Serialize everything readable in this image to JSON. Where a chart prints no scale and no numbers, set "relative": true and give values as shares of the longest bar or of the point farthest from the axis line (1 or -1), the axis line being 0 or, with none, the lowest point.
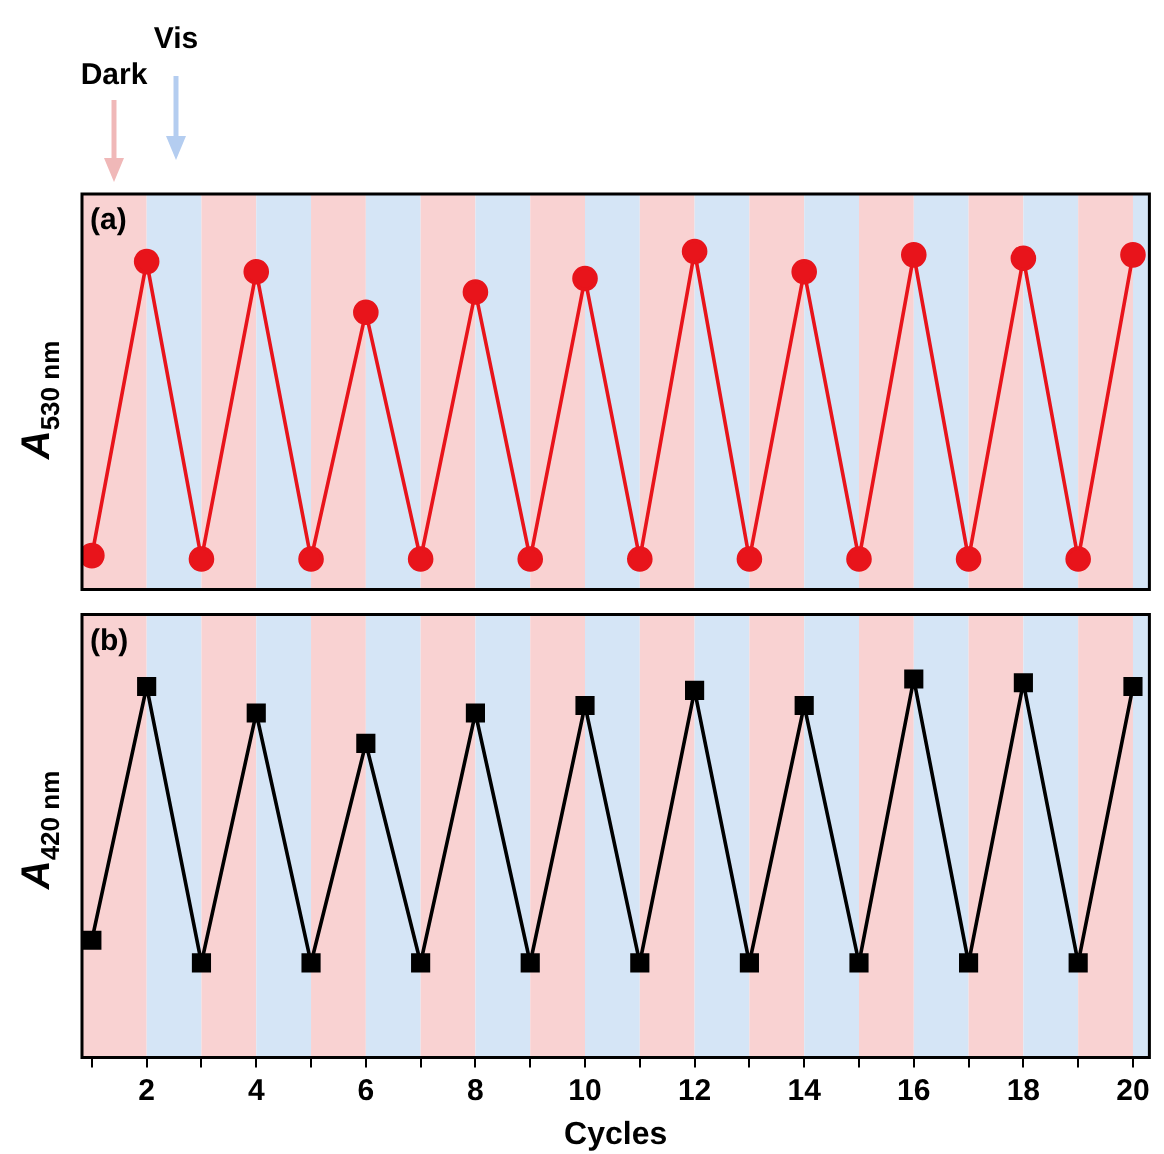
{
  "chart_data": [
    {
      "type": "line",
      "relative": true,
      "ylabel": "A$_{530 nm}$",
      "annotations": [
        "(a)",
        "Dark",
        "Vis"
      ],
      "marker": "circle",
      "grid": false,
      "tick_labels": false,
      "x": [
        1,
        2,
        3,
        4,
        5,
        6,
        7,
        8,
        9,
        10,
        11,
        12,
        13,
        14,
        15,
        16,
        17,
        18,
        19,
        20
      ],
      "xlim": [
        0.82,
        20.3
      ],
      "series": [
        {
          "color": "#e8141b",
          "values": [
            0.1,
            0.97,
            0.09,
            0.94,
            0.09,
            0.82,
            0.09,
            0.88,
            0.09,
            0.92,
            0.09,
            1,
            0.09,
            0.94,
            0.09,
            0.99,
            0.09,
            0.98,
            0.09,
            0.99
          ]
        }
      ],
      "bands": [
        {
          "axis": "x",
          "from": 0.82,
          "to": 2,
          "label": null,
          "color": "#f9d2d2"
        },
        {
          "axis": "x",
          "from": 2,
          "to": 3,
          "label": null,
          "color": "#d5e5f6"
        },
        {
          "axis": "x",
          "from": 3,
          "to": 4,
          "label": null,
          "color": "#f9d2d2"
        },
        {
          "axis": "x",
          "from": 4,
          "to": 5,
          "label": null,
          "color": "#d5e5f6"
        },
        {
          "axis": "x",
          "from": 5,
          "to": 6,
          "label": null,
          "color": "#f9d2d2"
        },
        {
          "axis": "x",
          "from": 6,
          "to": 7,
          "label": null,
          "color": "#d5e5f6"
        },
        {
          "axis": "x",
          "from": 7,
          "to": 8,
          "label": null,
          "color": "#f9d2d2"
        },
        {
          "axis": "x",
          "from": 8,
          "to": 9,
          "label": null,
          "color": "#d5e5f6"
        },
        {
          "axis": "x",
          "from": 9,
          "to": 10,
          "label": null,
          "color": "#f9d2d2"
        },
        {
          "axis": "x",
          "from": 10,
          "to": 11,
          "label": null,
          "color": "#d5e5f6"
        },
        {
          "axis": "x",
          "from": 11,
          "to": 12,
          "label": null,
          "color": "#f9d2d2"
        },
        {
          "axis": "x",
          "from": 12,
          "to": 13,
          "label": null,
          "color": "#d5e5f6"
        },
        {
          "axis": "x",
          "from": 13,
          "to": 14,
          "label": null,
          "color": "#f9d2d2"
        },
        {
          "axis": "x",
          "from": 14,
          "to": 15,
          "label": null,
          "color": "#d5e5f6"
        },
        {
          "axis": "x",
          "from": 15,
          "to": 16,
          "label": null,
          "color": "#f9d2d2"
        },
        {
          "axis": "x",
          "from": 16,
          "to": 17,
          "label": null,
          "color": "#d5e5f6"
        },
        {
          "axis": "x",
          "from": 17,
          "to": 18,
          "label": null,
          "color": "#f9d2d2"
        },
        {
          "axis": "x",
          "from": 18,
          "to": 19,
          "label": null,
          "color": "#d5e5f6"
        },
        {
          "axis": "x",
          "from": 19,
          "to": 20,
          "label": null,
          "color": "#f9d2d2"
        },
        {
          "axis": "x",
          "from": 20,
          "to": 20.3,
          "label": null,
          "color": "#d5e5f6"
        }
      ]
    },
    {
      "type": "line",
      "relative": true,
      "ylabel": "A$_{420 nm}$",
      "xlabel": "Cycles",
      "annotations": [
        "(b)"
      ],
      "marker": "square",
      "grid": false,
      "tick_labels": "x",
      "x": [
        1,
        2,
        3,
        4,
        5,
        6,
        7,
        8,
        9,
        10,
        11,
        12,
        13,
        14,
        15,
        16,
        17,
        18,
        19,
        20
      ],
      "xlim": [
        0.82,
        20.3
      ],
      "xticks": [
        {
          "value": 1,
          "label": null
        },
        2,
        {
          "value": 3,
          "label": null
        },
        4,
        {
          "value": 5,
          "label": null
        },
        6,
        {
          "value": 7,
          "label": null
        },
        8,
        {
          "value": 9,
          "label": null
        },
        10,
        {
          "value": 11,
          "label": null
        },
        12,
        {
          "value": 13,
          "label": null
        },
        14,
        {
          "value": 15,
          "label": null
        },
        16,
        {
          "value": 17,
          "label": null
        },
        18,
        {
          "value": 19,
          "label": null
        },
        20
      ],
      "series": [
        {
          "color": "#000000",
          "values": [
            0.31,
            0.98,
            0.25,
            0.91,
            0.25,
            0.83,
            0.25,
            0.91,
            0.25,
            0.93,
            0.25,
            0.97,
            0.25,
            0.93,
            0.25,
            1,
            0.25,
            0.99,
            0.25,
            0.98
          ]
        }
      ],
      "bands": [
        {
          "axis": "x",
          "from": 0.82,
          "to": 2,
          "label": null,
          "color": "#f9d2d2"
        },
        {
          "axis": "x",
          "from": 2,
          "to": 3,
          "label": null,
          "color": "#d5e5f6"
        },
        {
          "axis": "x",
          "from": 3,
          "to": 4,
          "label": null,
          "color": "#f9d2d2"
        },
        {
          "axis": "x",
          "from": 4,
          "to": 5,
          "label": null,
          "color": "#d5e5f6"
        },
        {
          "axis": "x",
          "from": 5,
          "to": 6,
          "label": null,
          "color": "#f9d2d2"
        },
        {
          "axis": "x",
          "from": 6,
          "to": 7,
          "label": null,
          "color": "#d5e5f6"
        },
        {
          "axis": "x",
          "from": 7,
          "to": 8,
          "label": null,
          "color": "#f9d2d2"
        },
        {
          "axis": "x",
          "from": 8,
          "to": 9,
          "label": null,
          "color": "#d5e5f6"
        },
        {
          "axis": "x",
          "from": 9,
          "to": 10,
          "label": null,
          "color": "#f9d2d2"
        },
        {
          "axis": "x",
          "from": 10,
          "to": 11,
          "label": null,
          "color": "#d5e5f6"
        },
        {
          "axis": "x",
          "from": 11,
          "to": 12,
          "label": null,
          "color": "#f9d2d2"
        },
        {
          "axis": "x",
          "from": 12,
          "to": 13,
          "label": null,
          "color": "#d5e5f6"
        },
        {
          "axis": "x",
          "from": 13,
          "to": 14,
          "label": null,
          "color": "#f9d2d2"
        },
        {
          "axis": "x",
          "from": 14,
          "to": 15,
          "label": null,
          "color": "#d5e5f6"
        },
        {
          "axis": "x",
          "from": 15,
          "to": 16,
          "label": null,
          "color": "#f9d2d2"
        },
        {
          "axis": "x",
          "from": 16,
          "to": 17,
          "label": null,
          "color": "#d5e5f6"
        },
        {
          "axis": "x",
          "from": 17,
          "to": 18,
          "label": null,
          "color": "#f9d2d2"
        },
        {
          "axis": "x",
          "from": 18,
          "to": 19,
          "label": null,
          "color": "#d5e5f6"
        },
        {
          "axis": "x",
          "from": 19,
          "to": 20,
          "label": null,
          "color": "#f9d2d2"
        },
        {
          "axis": "x",
          "from": 20,
          "to": 20.3,
          "label": null,
          "color": "#d5e5f6"
        }
      ]
    }
  ]
}
